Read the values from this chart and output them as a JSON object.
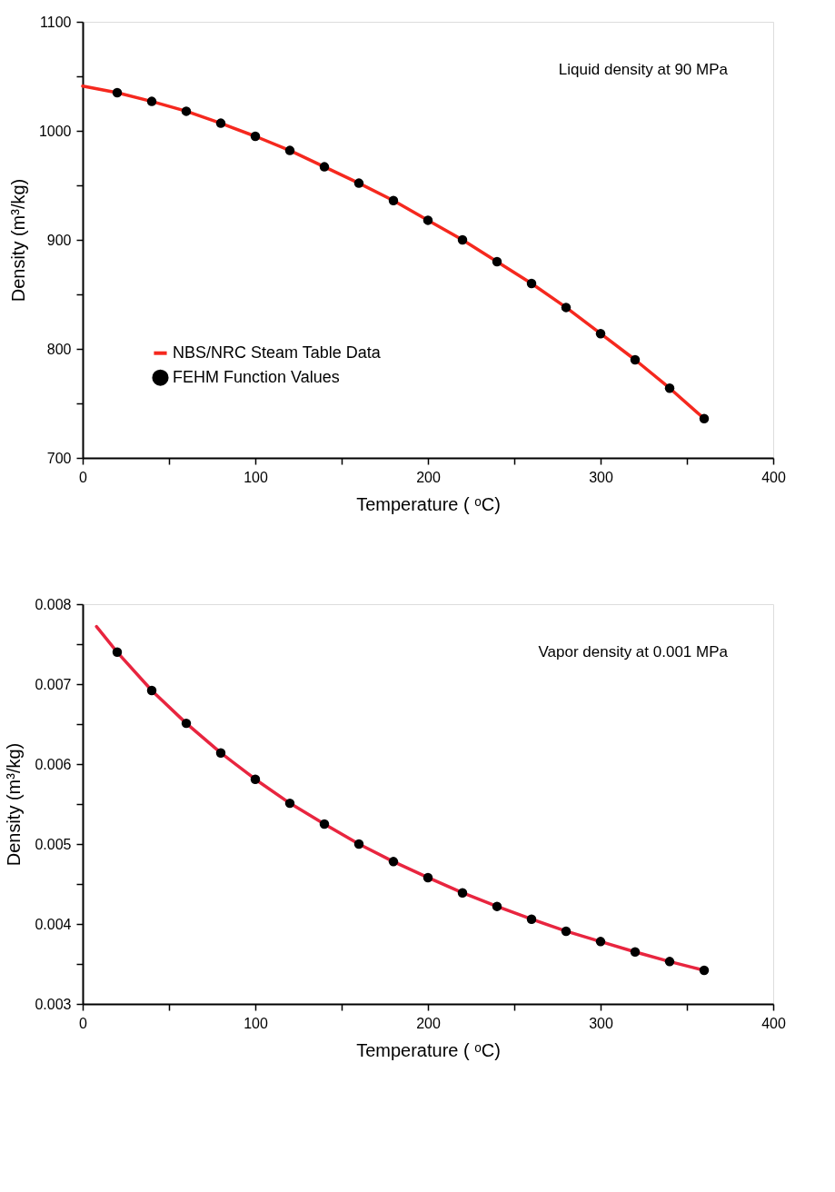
{
  "chart_data": [
    {
      "type": "line",
      "annotations": [
        "Liquid density at 90 MPa"
      ],
      "xlabel": "Temperature ( ᵒC)",
      "ylabel": "Density (m³/kg)",
      "xlim": [
        0,
        400
      ],
      "xticks": [
        0,
        {
          "value": 50,
          "label": null
        },
        100,
        {
          "value": 150,
          "label": null
        },
        200,
        {
          "value": 250,
          "label": null
        },
        300,
        {
          "value": 350,
          "label": null
        },
        400
      ],
      "ylim": [
        700,
        1100
      ],
      "yticks": [
        700,
        {
          "value": 750,
          "label": null
        },
        800,
        {
          "value": 850,
          "label": null
        },
        900,
        {
          "value": 950,
          "label": null
        },
        1000,
        {
          "value": 1050,
          "label": null
        },
        1100
      ],
      "grid": false,
      "legend": "bottom left",
      "series": [
        {
          "name": "NBS/NRC Steam Table Data",
          "type": "line",
          "color": "#f5281e",
          "marker": "none",
          "x": [
            0,
            20,
            40,
            60,
            80,
            100,
            120,
            140,
            160,
            180,
            200,
            220,
            240,
            260,
            280,
            300,
            320,
            340,
            360
          ],
          "values": [
            1041,
            1035,
            1027,
            1018,
            1007,
            995,
            982,
            967,
            952,
            936,
            918,
            900,
            880,
            860,
            838,
            814,
            790,
            764,
            736
          ]
        },
        {
          "name": "FEHM Function Values",
          "type": "scatter",
          "color": "#000000",
          "marker": "circle",
          "x": [
            20,
            40,
            60,
            80,
            100,
            120,
            140,
            160,
            180,
            200,
            220,
            240,
            260,
            280,
            300,
            320,
            340,
            360
          ],
          "values": [
            1035,
            1027,
            1018,
            1007,
            995,
            982,
            967,
            952,
            936,
            918,
            900,
            880,
            860,
            838,
            814,
            790,
            764,
            736
          ]
        }
      ]
    },
    {
      "type": "line",
      "annotations": [
        "Vapor density at 0.001 MPa"
      ],
      "xlabel": "Temperature ( ᵒC)",
      "ylabel": "Density (m³/kg)",
      "xlim": [
        0,
        400
      ],
      "xticks": [
        0,
        {
          "value": 50,
          "label": null
        },
        100,
        {
          "value": 150,
          "label": null
        },
        200,
        {
          "value": 250,
          "label": null
        },
        300,
        {
          "value": 350,
          "label": null
        },
        400
      ],
      "ylim": [
        0.003,
        0.008
      ],
      "yticks": [
        0.003,
        {
          "value": 0.0035,
          "label": null
        },
        0.004,
        {
          "value": 0.0045,
          "label": null
        },
        0.005,
        {
          "value": 0.0055,
          "label": null
        },
        0.006,
        {
          "value": 0.0065,
          "label": null
        },
        0.007,
        {
          "value": 0.0075,
          "label": null
        },
        0.008
      ],
      "grid": false,
      "legend": false,
      "series": [
        {
          "type": "line",
          "color": "#e8253f",
          "marker": "none",
          "x": [
            8,
            20,
            40,
            60,
            80,
            100,
            120,
            140,
            160,
            180,
            200,
            220,
            240,
            260,
            280,
            300,
            320,
            340,
            360
          ],
          "values": [
            0.00772,
            0.0074,
            0.00692,
            0.00651,
            0.00614,
            0.00581,
            0.00551,
            0.00525,
            0.005,
            0.00478,
            0.00458,
            0.00439,
            0.00422,
            0.00406,
            0.00391,
            0.00378,
            0.00365,
            0.00353,
            0.00342
          ]
        },
        {
          "type": "scatter",
          "color": "#000000",
          "marker": "circle",
          "x": [
            20,
            40,
            60,
            80,
            100,
            120,
            140,
            160,
            180,
            200,
            220,
            240,
            260,
            280,
            300,
            320,
            340,
            360
          ],
          "values": [
            0.0074,
            0.00692,
            0.00651,
            0.00614,
            0.00581,
            0.00551,
            0.00525,
            0.005,
            0.00478,
            0.00458,
            0.00439,
            0.00422,
            0.00406,
            0.00391,
            0.00378,
            0.00365,
            0.00353,
            0.00342
          ]
        }
      ]
    }
  ]
}
